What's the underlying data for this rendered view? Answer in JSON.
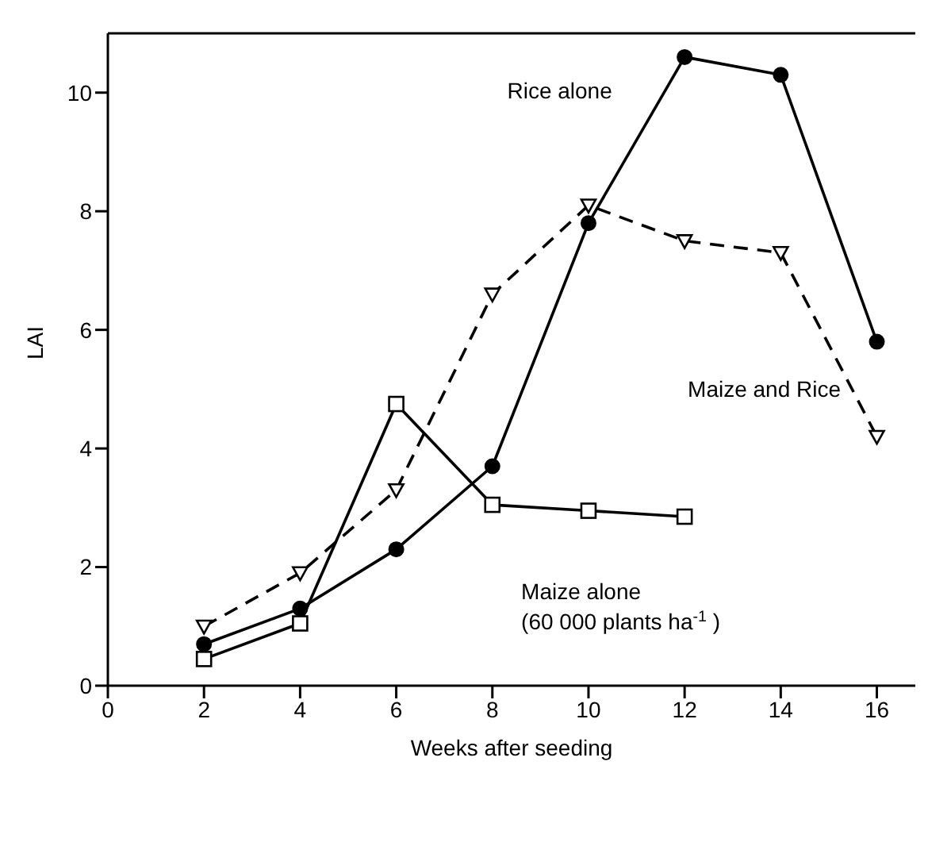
{
  "chart_data": {
    "type": "line",
    "xlabel": "Weeks after seeding",
    "ylabel": "LAI",
    "xlim": [
      0,
      16.8
    ],
    "xticks": [
      0,
      2,
      4,
      6,
      8,
      10,
      12,
      14,
      16
    ],
    "ylim": [
      0,
      11
    ],
    "yticks": [
      0,
      2,
      4,
      6,
      8,
      10
    ],
    "series": [
      {
        "name": "Rice alone",
        "color": "#000000",
        "marker": "circle",
        "line_style": "solid",
        "x": [
          2,
          4,
          6,
          8,
          10,
          12,
          14,
          16
        ],
        "values": [
          0.7,
          1.3,
          2.3,
          3.7,
          7.8,
          10.6,
          10.3,
          5.8
        ]
      },
      {
        "name": "Maize and Rice",
        "color": "#000000",
        "marker": "triangle",
        "line_style": "dashed",
        "x": [
          2,
          4,
          6,
          8,
          10,
          12,
          14,
          16
        ],
        "values": [
          1.0,
          1.9,
          3.3,
          6.6,
          8.1,
          7.5,
          7.3,
          4.2
        ]
      },
      {
        "name": "Maize alone\n(60 000 plants ha$^{-1}$ )",
        "color": "#000000",
        "marker": "square",
        "line_style": "solid",
        "x": [
          2,
          4,
          6,
          8,
          10,
          12
        ],
        "values": [
          0.45,
          1.05,
          4.75,
          3.05,
          2.95,
          2.85
        ]
      }
    ]
  }
}
